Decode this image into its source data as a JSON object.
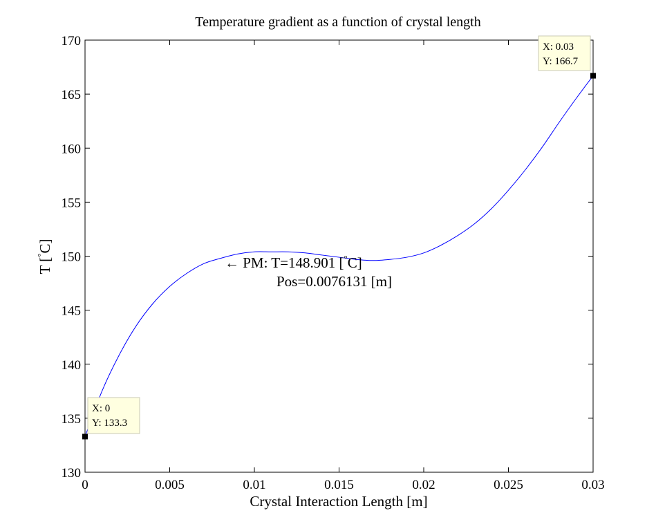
{
  "chart_data": {
    "type": "line",
    "title": "Temperature gradient as a function of crystal length",
    "xlabel": "Crystal Interaction Length [m]",
    "ylabel": "T [ C]",
    "ylabel_parts": {
      "prefix": "T [",
      "degree": "°",
      "suffix": "C]"
    },
    "xlim": [
      0,
      0.03
    ],
    "ylim": [
      130,
      170
    ],
    "x_ticks": [
      0,
      0.005,
      0.01,
      0.015,
      0.02,
      0.025,
      0.03
    ],
    "x_tick_labels": [
      "0",
      "0.005",
      "0.01",
      "0.015",
      "0.02",
      "0.025",
      "0.03"
    ],
    "y_ticks": [
      130,
      135,
      140,
      145,
      150,
      155,
      160,
      165,
      170
    ],
    "y_tick_labels": [
      "130",
      "135",
      "140",
      "145",
      "150",
      "155",
      "160",
      "165",
      "170"
    ],
    "grid": false,
    "series": [
      {
        "color": "#0000ff",
        "x": [
          0,
          0.001,
          0.002,
          0.003,
          0.004,
          0.005,
          0.006,
          0.007,
          0.008,
          0.009,
          0.01,
          0.011,
          0.012,
          0.013,
          0.014,
          0.015,
          0.016,
          0.017,
          0.018,
          0.019,
          0.02,
          0.021,
          0.022,
          0.023,
          0.024,
          0.025,
          0.026,
          0.027,
          0.028,
          0.029,
          0.03
        ],
        "y": [
          133.3,
          137.5,
          140.8,
          143.5,
          145.6,
          147.2,
          148.4,
          149.3,
          149.8,
          150.2,
          150.4,
          150.4,
          150.4,
          150.3,
          150.1,
          149.9,
          149.7,
          149.6,
          149.7,
          149.9,
          150.3,
          151.0,
          151.9,
          153.0,
          154.4,
          156.1,
          158.0,
          160.1,
          162.4,
          164.6,
          166.7
        ]
      }
    ],
    "annotation": {
      "arrow": "←",
      "line1_prefix": "PM: T=148.901 [",
      "line1_degree": "°",
      "line1_suffix": "C]",
      "line2": "Pos=0.0076131 [m]",
      "anchor_x": 0.0082,
      "anchor_y": 149.3
    },
    "datatips": [
      {
        "x": 0,
        "y": 133.3,
        "label_x": "X: 0",
        "label_y": "Y: 133.3"
      },
      {
        "x": 0.03,
        "y": 166.7,
        "label_x": "X: 0.03",
        "label_y": "Y: 166.7"
      }
    ]
  }
}
